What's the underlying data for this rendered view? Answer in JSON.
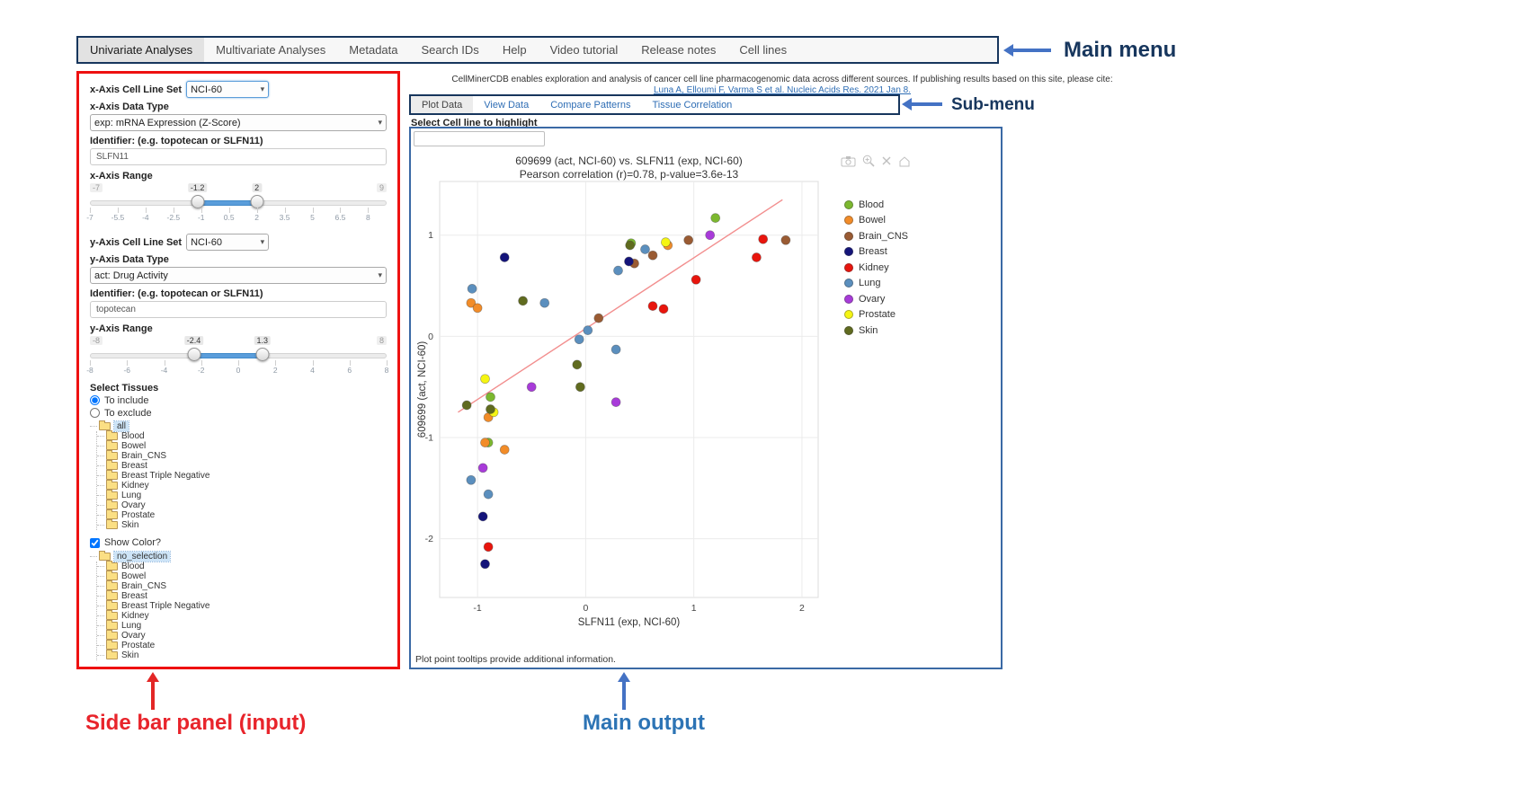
{
  "annotations": {
    "main_menu": "Main menu",
    "sub_menu": "Sub-menu",
    "sidebar": "Side bar panel (input)",
    "main_output": "Main output"
  },
  "colors": {
    "annotation_navy": "#17365d",
    "annotation_red": "#e8242b",
    "annotation_blue": "#2d74b5",
    "arrow_blue": "#4472c4",
    "sidebar_border": "#ee1111",
    "output_border": "#3a69a5",
    "slider_bar": "#5a9ddb",
    "link_blue": "#2f6eb5"
  },
  "main_menu": {
    "items": [
      {
        "label": "Univariate Analyses",
        "active": true
      },
      {
        "label": "Multivariate Analyses",
        "active": false
      },
      {
        "label": "Metadata",
        "active": false
      },
      {
        "label": "Search IDs",
        "active": false
      },
      {
        "label": "Help",
        "active": false
      },
      {
        "label": "Video tutorial",
        "active": false
      },
      {
        "label": "Release notes",
        "active": false
      },
      {
        "label": "Cell lines",
        "active": false
      }
    ]
  },
  "citation": {
    "line1": "CellMinerCDB enables exploration and analysis of cancer cell line pharmacogenomic data across different sources. If publishing results based on this site, please cite:",
    "link": "Luna A, Elloumi F, Varma S et al. Nucleic Acids Res. 2021 Jan 8."
  },
  "sub_menu": {
    "tabs": [
      {
        "label": "Plot Data",
        "active": true
      },
      {
        "label": "View Data",
        "active": false
      },
      {
        "label": "Compare Patterns",
        "active": false
      },
      {
        "label": "Tissue Correlation",
        "active": false
      }
    ]
  },
  "sidebar": {
    "x_axis": {
      "cell_line_set_label": "x-Axis Cell Line Set",
      "cell_line_set_value": "NCI-60",
      "data_type_label": "x-Axis Data Type",
      "data_type_value": "exp: mRNA Expression (Z-Score)",
      "identifier_label": "Identifier: (e.g. topotecan or SLFN11)",
      "identifier_value": "SLFN11",
      "range_label": "x-Axis Range",
      "range": {
        "min": -7,
        "max": 9,
        "from": -1.2,
        "to": 2,
        "min_label": "-7",
        "max_label": "9",
        "from_label": "-1.2",
        "to_label": "2",
        "grid_labels": [
          "-7",
          "-5.5",
          "-4",
          "-2.5",
          "-1",
          "0.5",
          "2",
          "3.5",
          "5",
          "6.5",
          "8"
        ]
      }
    },
    "y_axis": {
      "cell_line_set_label": "y-Axis Cell Line Set",
      "cell_line_set_value": "NCI-60",
      "data_type_label": "y-Axis Data Type",
      "data_type_value": "act: Drug Activity",
      "identifier_label": "Identifier: (e.g. topotecan or SLFN11)",
      "identifier_value": "topotecan",
      "range_label": "y-Axis Range",
      "range": {
        "min": -8,
        "max": 8,
        "from": -2.4,
        "to": 1.3,
        "min_label": "-8",
        "max_label": "8",
        "from_label": "-2.4",
        "to_label": "1.3",
        "grid_labels": [
          "-8",
          "-6",
          "-4",
          "-2",
          "0",
          "2",
          "4",
          "6",
          "8"
        ]
      }
    },
    "tissues": {
      "label": "Select Tissues",
      "radio_include": "To include",
      "radio_exclude": "To exclude",
      "include_selected": true,
      "tree_root": "all",
      "tree_items": [
        "Blood",
        "Bowel",
        "Brain_CNS",
        "Breast",
        "Breast Triple Negative",
        "Kidney",
        "Lung",
        "Ovary",
        "Prostate",
        "Skin"
      ]
    },
    "show_color_label": "Show Color?",
    "show_color_checked": true,
    "color_tree": {
      "root": "no_selection",
      "items": [
        "Blood",
        "Bowel",
        "Brain_CNS",
        "Breast",
        "Breast Triple Negative",
        "Kidney",
        "Lung",
        "Ovary",
        "Prostate",
        "Skin"
      ]
    }
  },
  "main_output": {
    "highlight_label": "Select Cell line to highlight",
    "highlight_value": "",
    "footer": "Plot point tooltips provide additional information.",
    "modebar_icons": [
      "camera-icon",
      "zoom-icon",
      "close-icon",
      "reset-axes-icon"
    ]
  },
  "chart_data": {
    "type": "scatter",
    "title": "609699 (act, NCI-60) vs. SLFN11 (exp, NCI-60)",
    "subtitle": "Pearson correlation (r)=0.78, p-value=3.6e-13",
    "xlabel": "SLFN11 (exp, NCI-60)",
    "ylabel": "609699 (act, NCI-60)",
    "xlim": [
      -1.35,
      2.15
    ],
    "ylim": [
      -2.58,
      1.53
    ],
    "xticks": [
      -1,
      0,
      1,
      2
    ],
    "yticks": [
      -2,
      -1,
      0,
      1
    ],
    "grid": true,
    "legend_position": "right",
    "regression_line": {
      "x": [
        -1.18,
        1.82
      ],
      "y": [
        -0.75,
        1.35
      ],
      "color": "#f28e8e"
    },
    "series": [
      {
        "name": "Blood",
        "color": "#7cb82f",
        "points": [
          [
            1.2,
            1.17
          ],
          [
            0.42,
            0.92
          ],
          [
            -0.88,
            -0.6
          ],
          [
            -0.9,
            -1.05
          ]
        ]
      },
      {
        "name": "Bowel",
        "color": "#f28c28",
        "points": [
          [
            -1.06,
            0.33
          ],
          [
            -1.0,
            0.28
          ],
          [
            0.76,
            0.9
          ],
          [
            -0.9,
            -0.8
          ],
          [
            -0.93,
            -1.05
          ],
          [
            -0.75,
            -1.12
          ]
        ]
      },
      {
        "name": "Brain_CNS",
        "color": "#9a5b33",
        "points": [
          [
            0.62,
            0.8
          ],
          [
            0.95,
            0.95
          ],
          [
            1.85,
            0.95
          ],
          [
            0.45,
            0.72
          ],
          [
            0.12,
            0.18
          ]
        ]
      },
      {
        "name": "Breast",
        "color": "#14147a",
        "points": [
          [
            -0.75,
            0.78
          ],
          [
            0.4,
            0.74
          ],
          [
            -0.95,
            -1.78
          ],
          [
            -0.93,
            -2.25
          ]
        ]
      },
      {
        "name": "Kidney",
        "color": "#e8150d",
        "points": [
          [
            1.64,
            0.96
          ],
          [
            1.58,
            0.78
          ],
          [
            1.02,
            0.56
          ],
          [
            0.62,
            0.3
          ],
          [
            0.72,
            0.27
          ],
          [
            -0.9,
            -2.08
          ]
        ]
      },
      {
        "name": "Lung",
        "color": "#5b8fbe",
        "points": [
          [
            -1.05,
            0.47
          ],
          [
            0.55,
            0.86
          ],
          [
            0.3,
            0.65
          ],
          [
            -0.38,
            0.33
          ],
          [
            0.02,
            0.06
          ],
          [
            -0.06,
            -0.03
          ],
          [
            0.28,
            -0.13
          ],
          [
            -1.06,
            -1.42
          ],
          [
            -0.9,
            -1.56
          ]
        ]
      },
      {
        "name": "Ovary",
        "color": "#a83bd9",
        "points": [
          [
            1.15,
            1.0
          ],
          [
            0.28,
            -0.65
          ],
          [
            -0.5,
            -0.5
          ],
          [
            -0.95,
            -1.3
          ]
        ]
      },
      {
        "name": "Prostate",
        "color": "#f5f513",
        "points": [
          [
            0.74,
            0.93
          ],
          [
            -0.93,
            -0.42
          ],
          [
            -0.85,
            -0.75
          ]
        ]
      },
      {
        "name": "Skin",
        "color": "#606b1f",
        "points": [
          [
            -0.58,
            0.35
          ],
          [
            0.41,
            0.9
          ],
          [
            -0.08,
            -0.28
          ],
          [
            -1.1,
            -0.68
          ],
          [
            -0.88,
            -0.72
          ],
          [
            -0.05,
            -0.5
          ]
        ]
      }
    ]
  }
}
